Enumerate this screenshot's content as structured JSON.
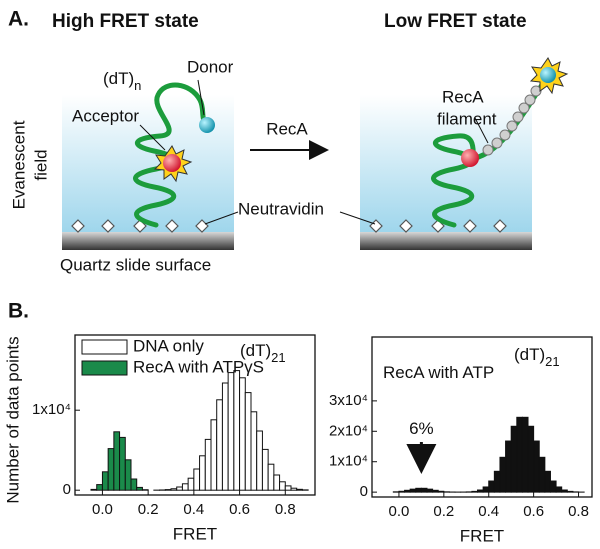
{
  "panel_a": {
    "label": "A.",
    "high_title": "High FRET state",
    "low_title": "Low FRET state",
    "dt": {
      "text": "(dT)",
      "subscript": "n"
    },
    "donor": "Donor",
    "acceptor": "Acceptor",
    "arrow": "RecA",
    "filament": [
      "RecA",
      "filament"
    ],
    "evanescent": [
      "Evanescent",
      "field"
    ],
    "neutravidin": "Neutravidin",
    "surface": "Quartz slide surface"
  },
  "panel_b": {
    "label": "B.",
    "ylabel": "Number of data points"
  },
  "chart_data": [
    {
      "type": "histogram",
      "xlabel": "FRET",
      "legend": "upper left",
      "bins": [
        -0.1,
        -0.075,
        -0.05,
        -0.025,
        0,
        0.025,
        0.05,
        0.075,
        0.1,
        0.125,
        0.15,
        0.175,
        0.2,
        0.225,
        0.25,
        0.275,
        0.3,
        0.325,
        0.35,
        0.375,
        0.4,
        0.425,
        0.45,
        0.475,
        0.5,
        0.525,
        0.55,
        0.575,
        0.6,
        0.625,
        0.65,
        0.675,
        0.7,
        0.725,
        0.75,
        0.775,
        0.8,
        0.825,
        0.85,
        0.875,
        0.9
      ],
      "series": [
        {
          "name": "DNA only",
          "color": "#ffffff",
          "values": [
            0,
            0,
            0,
            0,
            0,
            0,
            0,
            0,
            0,
            0,
            0,
            0,
            0,
            10,
            30,
            75,
            180,
            400,
            800,
            1500,
            2650,
            4300,
            6350,
            8800,
            11300,
            13400,
            14700,
            14950,
            14050,
            12200,
            9800,
            7400,
            5100,
            3250,
            1900,
            1050,
            540,
            250,
            110,
            40
          ]
        },
        {
          "name": "RecA with ATPγS",
          "color": "#1a8a4a",
          "values": [
            0,
            0,
            100,
            700,
            2300,
            5200,
            7300,
            6600,
            3800,
            1400,
            350,
            60,
            0,
            0,
            0,
            0,
            0,
            0,
            0,
            0,
            0,
            0,
            0,
            0,
            0,
            0,
            0,
            0,
            0,
            0,
            0,
            0,
            0,
            0,
            0,
            0,
            0,
            0,
            0,
            0
          ]
        }
      ],
      "xlim": [
        -0.12,
        0.93
      ],
      "xticks": [
        {
          "value": 0,
          "label": "0.0"
        },
        0.2,
        0.4,
        0.6,
        0.8
      ],
      "ylim": [
        -600,
        19400
      ],
      "yticks": [
        0,
        {
          "value": 10000,
          "label": "1x10⁴"
        }
      ],
      "annotations": [
        {
          "text": "(dT)",
          "subscript": "21"
        }
      ]
    },
    {
      "type": "histogram",
      "xlabel": "FRET",
      "bins": [
        -0.1,
        -0.075,
        -0.05,
        -0.025,
        0,
        0.025,
        0.05,
        0.075,
        0.1,
        0.125,
        0.15,
        0.175,
        0.2,
        0.225,
        0.25,
        0.275,
        0.3,
        0.325,
        0.35,
        0.375,
        0.4,
        0.425,
        0.45,
        0.475,
        0.5,
        0.525,
        0.55,
        0.575,
        0.6,
        0.625,
        0.65,
        0.675,
        0.7,
        0.725,
        0.75,
        0.775,
        0.8,
        0.825,
        0.85
      ],
      "series": [
        {
          "color": "#111111",
          "values": [
            0,
            0,
            0,
            100,
            280,
            600,
            980,
            1260,
            1260,
            980,
            600,
            280,
            100,
            40,
            20,
            30,
            80,
            250,
            700,
            1700,
            3650,
            6850,
            11450,
            16800,
            21650,
            24600,
            24600,
            21650,
            16800,
            11450,
            6850,
            3650,
            1700,
            700,
            250,
            80,
            20,
            0
          ]
        }
      ],
      "xlim": [
        -0.12,
        0.86
      ],
      "xticks": [
        {
          "value": 0,
          "label": "0.0"
        },
        0.2,
        0.4,
        0.6,
        0.8
      ],
      "ylim": [
        -1600,
        51000
      ],
      "yticks": [
        0,
        {
          "value": 10000,
          "label": "1x10⁴"
        },
        {
          "value": 20000,
          "label": "2x10⁴"
        },
        {
          "value": 30000,
          "label": "3x10⁴"
        }
      ],
      "annotations": [
        {
          "text": "RecA with ATP"
        },
        {
          "text": "(dT)",
          "subscript": "21"
        },
        {
          "text": "6%",
          "x": 0.1
        }
      ]
    }
  ]
}
